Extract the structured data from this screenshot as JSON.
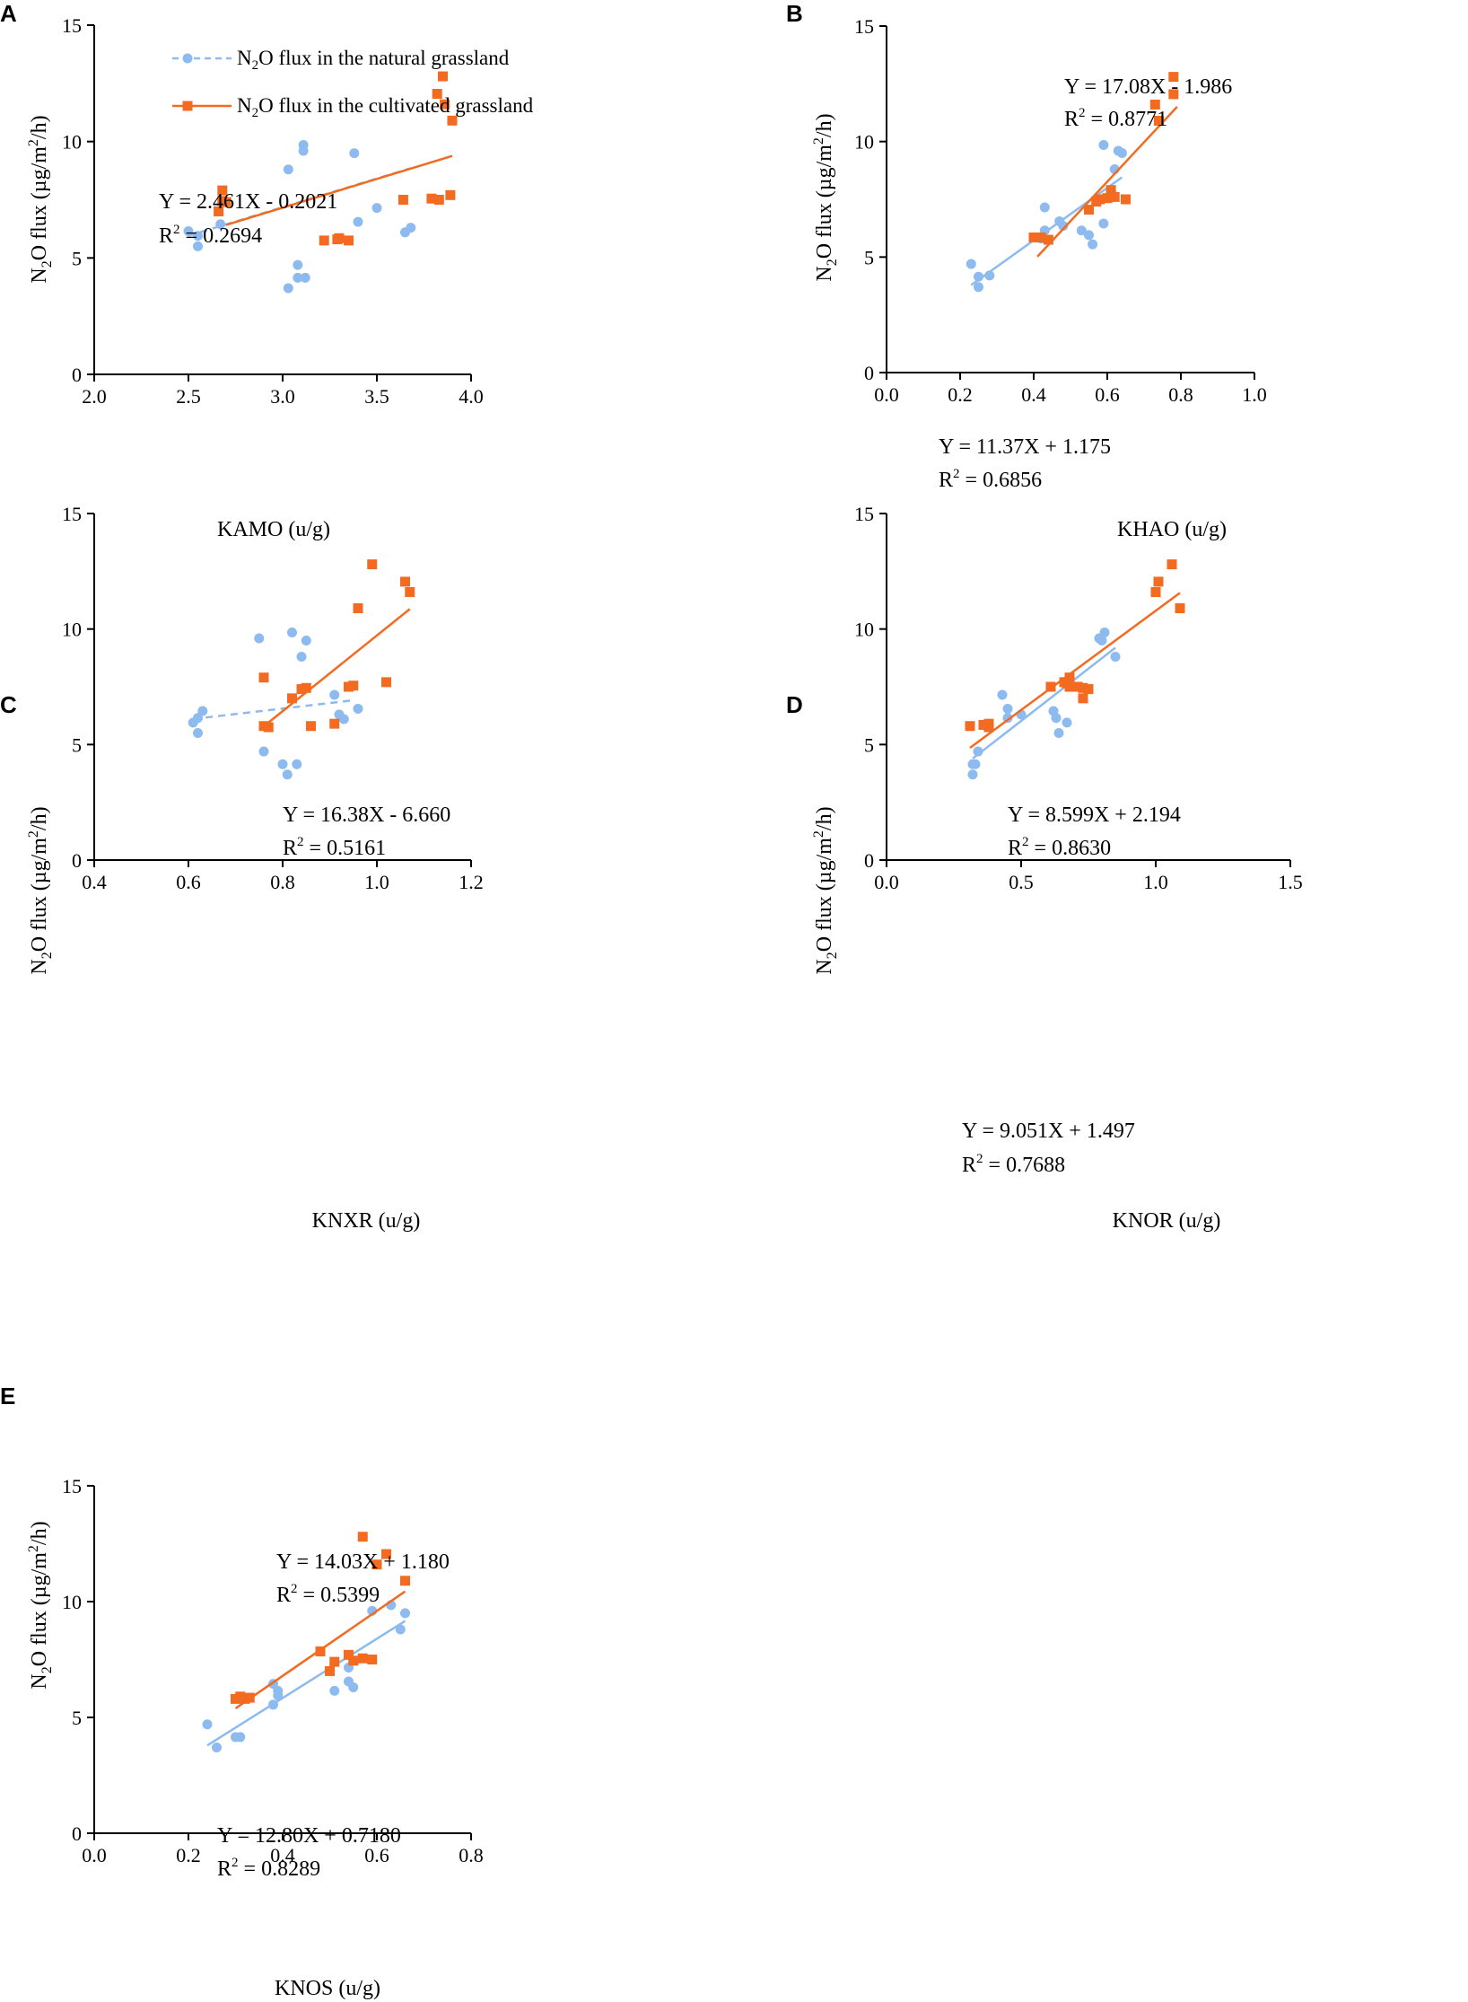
{
  "colors": {
    "natural": "#8dbbef",
    "cultivated": "#f26b21",
    "axis": "#000000"
  },
  "legend": {
    "natural": {
      "pre": "N",
      "sub": "2",
      "post": "O flux in the natural  grassland"
    },
    "cultivated": {
      "pre": "N",
      "sub": "2",
      "post": "O flux in the cultivated grassland"
    }
  },
  "chart_data": [
    {
      "panel": "A",
      "type": "scatter",
      "xlabel": "KAMO (u/g)",
      "ylabel": {
        "pre": "N",
        "sub": "2",
        "mid": "O flux (µg/m",
        "sup": "2",
        "post": "/h)"
      },
      "xlim": [
        2.0,
        4.0
      ],
      "ylim": [
        0,
        15
      ],
      "xticks": [
        2.0,
        2.5,
        3.0,
        3.5,
        4.0
      ],
      "xtick_labels": [
        "2.0",
        "2.5",
        "3.0",
        "3.5",
        "4.0"
      ],
      "yticks": [
        0,
        5,
        10,
        15
      ],
      "ytick_labels": [
        "0",
        "5",
        "10",
        "15"
      ],
      "series": [
        {
          "name": "natural",
          "points": [
            [
              2.5,
              6.15
            ],
            [
              2.55,
              5.95
            ],
            [
              2.55,
              5.5
            ],
            [
              2.67,
              6.45
            ],
            [
              3.03,
              8.8
            ],
            [
              3.03,
              3.7
            ],
            [
              3.08,
              4.7
            ],
            [
              3.08,
              4.15
            ],
            [
              3.11,
              9.85
            ],
            [
              3.11,
              9.6
            ],
            [
              3.12,
              4.15
            ],
            [
              3.38,
              9.5
            ],
            [
              3.4,
              6.55
            ],
            [
              3.5,
              7.15
            ],
            [
              3.65,
              6.1
            ],
            [
              3.68,
              6.3
            ]
          ],
          "fit": {
            "x": [
              2.5,
              3.68
            ],
            "dashed": true
          },
          "equation": "Y = 2.461X - 0.2021",
          "r2": "0.2694"
        },
        {
          "name": "cultivated",
          "points": [
            [
              2.66,
              7.0
            ],
            [
              2.68,
              7.9
            ],
            [
              2.68,
              7.45
            ],
            [
              2.7,
              7.4
            ],
            [
              3.22,
              5.75
            ],
            [
              3.29,
              5.8
            ],
            [
              3.3,
              5.85
            ],
            [
              3.35,
              5.75
            ],
            [
              3.64,
              7.5
            ],
            [
              3.79,
              7.55
            ],
            [
              3.82,
              12.05
            ],
            [
              3.83,
              7.5
            ],
            [
              3.85,
              12.8
            ],
            [
              3.86,
              11.6
            ],
            [
              3.89,
              7.7
            ],
            [
              3.9,
              10.9
            ]
          ],
          "fit": {
            "x": [
              2.7,
              3.9
            ],
            "dashed": false
          },
          "equation": "",
          "r2": ""
        }
      ]
    },
    {
      "panel": "B",
      "type": "scatter",
      "xlabel": "KHAO (u/g)",
      "ylabel": {
        "pre": "N",
        "sub": "2",
        "mid": "O flux (µg/m",
        "sup": "2",
        "post": "/h)"
      },
      "xlim": [
        0.0,
        1.0
      ],
      "ylim": [
        0,
        15
      ],
      "xticks": [
        0.0,
        0.2,
        0.4,
        0.6,
        0.8,
        1.0
      ],
      "xtick_labels": [
        "0.0",
        "0.2",
        "0.4",
        "0.6",
        "0.8",
        "1.0"
      ],
      "yticks": [
        0,
        5,
        10,
        15
      ],
      "ytick_labels": [
        "0",
        "5",
        "10",
        "15"
      ],
      "series": [
        {
          "name": "natural",
          "points": [
            [
              0.23,
              4.7
            ],
            [
              0.25,
              4.15
            ],
            [
              0.25,
              3.7
            ],
            [
              0.28,
              4.2
            ],
            [
              0.41,
              5.85
            ],
            [
              0.42,
              5.8
            ],
            [
              0.43,
              7.15
            ],
            [
              0.43,
              6.15
            ],
            [
              0.47,
              6.55
            ],
            [
              0.48,
              6.35
            ],
            [
              0.53,
              6.15
            ],
            [
              0.55,
              5.95
            ],
            [
              0.56,
              5.55
            ],
            [
              0.59,
              6.45
            ],
            [
              0.59,
              9.85
            ],
            [
              0.62,
              8.8
            ],
            [
              0.63,
              9.6
            ],
            [
              0.64,
              9.5
            ]
          ],
          "fit": {
            "x": [
              0.23,
              0.64
            ],
            "dashed": false
          },
          "equation": "Y = 11.37X + 1.175",
          "r2": "0.6856"
        },
        {
          "name": "cultivated",
          "points": [
            [
              0.4,
              5.85
            ],
            [
              0.42,
              5.85
            ],
            [
              0.44,
              5.75
            ],
            [
              0.55,
              7.05
            ],
            [
              0.57,
              7.4
            ],
            [
              0.58,
              7.5
            ],
            [
              0.6,
              7.55
            ],
            [
              0.61,
              7.9
            ],
            [
              0.61,
              7.7
            ],
            [
              0.62,
              7.6
            ],
            [
              0.65,
              7.5
            ],
            [
              0.73,
              11.6
            ],
            [
              0.74,
              10.9
            ],
            [
              0.78,
              12.05
            ],
            [
              0.78,
              12.8
            ]
          ],
          "fit": {
            "x": [
              0.41,
              0.79
            ],
            "dashed": false
          },
          "equation": "Y = 17.08X - 1.986",
          "r2": "0.8771"
        }
      ]
    },
    {
      "panel": "C",
      "type": "scatter",
      "xlabel": "KNXR (u/g)",
      "ylabel": {
        "pre": "N",
        "sub": "2",
        "mid": "O flux (µg/m",
        "sup": "2",
        "post": "/h)"
      },
      "xlim": [
        0.4,
        1.2
      ],
      "ylim": [
        0,
        15
      ],
      "xticks": [
        0.4,
        0.6,
        0.8,
        1.0,
        1.2
      ],
      "xtick_labels": [
        "0.4",
        "0.6",
        "0.8",
        "1.0",
        "1.2"
      ],
      "yticks": [
        0,
        5,
        10,
        15
      ],
      "ytick_labels": [
        "0",
        "5",
        "10",
        "15"
      ],
      "series": [
        {
          "name": "natural",
          "points": [
            [
              0.61,
              5.95
            ],
            [
              0.62,
              6.15
            ],
            [
              0.62,
              5.5
            ],
            [
              0.63,
              6.45
            ],
            [
              0.75,
              9.6
            ],
            [
              0.76,
              4.7
            ],
            [
              0.8,
              4.15
            ],
            [
              0.81,
              3.7
            ],
            [
              0.82,
              9.85
            ],
            [
              0.83,
              4.15
            ],
            [
              0.84,
              8.8
            ],
            [
              0.85,
              9.5
            ],
            [
              0.91,
              7.15
            ],
            [
              0.92,
              6.3
            ],
            [
              0.93,
              6.1
            ],
            [
              0.96,
              6.55
            ]
          ],
          "fit": {
            "x": [
              0.61,
              0.95
            ],
            "dashed": true
          },
          "equation": "",
          "r2": ""
        },
        {
          "name": "cultivated",
          "points": [
            [
              0.76,
              7.9
            ],
            [
              0.76,
              5.8
            ],
            [
              0.77,
              5.75
            ],
            [
              0.82,
              7.0
            ],
            [
              0.84,
              7.4
            ],
            [
              0.85,
              7.45
            ],
            [
              0.86,
              5.8
            ],
            [
              0.91,
              5.9
            ],
            [
              0.94,
              7.5
            ],
            [
              0.95,
              7.55
            ],
            [
              0.96,
              10.9
            ],
            [
              0.99,
              12.8
            ],
            [
              1.02,
              7.7
            ],
            [
              1.06,
              12.05
            ],
            [
              1.07,
              11.6
            ]
          ],
          "fit": {
            "x": [
              0.76,
              1.07
            ],
            "dashed": false
          },
          "equation": "Y = 16.38X - 6.660",
          "r2": "0.5161"
        }
      ]
    },
    {
      "panel": "D",
      "type": "scatter",
      "xlabel": "KNOR (u/g)",
      "ylabel": {
        "pre": "N",
        "sub": "2",
        "mid": "O flux (µg/m",
        "sup": "2",
        "post": "/h)"
      },
      "xlim": [
        0.0,
        1.5
      ],
      "ylim": [
        0,
        15
      ],
      "xticks": [
        0.0,
        0.5,
        1.0,
        1.5
      ],
      "xtick_labels": [
        "0.0",
        "0.5",
        "1.0",
        "1.5"
      ],
      "yticks": [
        0,
        5,
        10,
        15
      ],
      "ytick_labels": [
        "0",
        "5",
        "10",
        "15"
      ],
      "series": [
        {
          "name": "natural",
          "points": [
            [
              0.32,
              4.15
            ],
            [
              0.32,
              3.7
            ],
            [
              0.33,
              4.15
            ],
            [
              0.34,
              4.7
            ],
            [
              0.43,
              7.15
            ],
            [
              0.45,
              6.55
            ],
            [
              0.45,
              6.15
            ],
            [
              0.5,
              6.3
            ],
            [
              0.62,
              6.45
            ],
            [
              0.63,
              6.15
            ],
            [
              0.64,
              5.5
            ],
            [
              0.67,
              5.95
            ],
            [
              0.79,
              9.6
            ],
            [
              0.8,
              9.5
            ],
            [
              0.81,
              9.85
            ],
            [
              0.85,
              8.8
            ]
          ],
          "fit": {
            "x": [
              0.32,
              0.85
            ],
            "dashed": false
          },
          "equation": "Y = 9.051X + 1.497",
          "r2": "0.7688"
        },
        {
          "name": "cultivated",
          "points": [
            [
              0.31,
              5.8
            ],
            [
              0.36,
              5.85
            ],
            [
              0.38,
              5.9
            ],
            [
              0.38,
              5.75
            ],
            [
              0.61,
              7.5
            ],
            [
              0.66,
              7.7
            ],
            [
              0.67,
              7.65
            ],
            [
              0.68,
              7.9
            ],
            [
              0.68,
              7.5
            ],
            [
              0.71,
              7.5
            ],
            [
              0.73,
              7.0
            ],
            [
              0.73,
              7.45
            ],
            [
              0.75,
              7.4
            ],
            [
              1.0,
              11.6
            ],
            [
              1.01,
              12.05
            ],
            [
              1.06,
              12.8
            ],
            [
              1.09,
              10.9
            ]
          ],
          "fit": {
            "x": [
              0.31,
              1.09
            ],
            "dashed": false
          },
          "equation": "Y = 8.599X + 2.194",
          "r2": "0.8630"
        }
      ]
    },
    {
      "panel": "E",
      "type": "scatter",
      "xlabel": "KNOS (u/g)",
      "ylabel": {
        "pre": "N",
        "sub": "2",
        "mid": "O flux (µg/m",
        "sup": "2",
        "post": "/h)"
      },
      "xlim": [
        0.0,
        0.8
      ],
      "ylim": [
        0,
        15
      ],
      "xticks": [
        0.0,
        0.2,
        0.4,
        0.6,
        0.8
      ],
      "xtick_labels": [
        "0.0",
        "0.2",
        "0.4",
        "0.6",
        "0.8"
      ],
      "yticks": [
        0,
        5,
        10,
        15
      ],
      "ytick_labels": [
        "0",
        "5",
        "10",
        "15"
      ],
      "series": [
        {
          "name": "natural",
          "points": [
            [
              0.24,
              4.7
            ],
            [
              0.26,
              3.7
            ],
            [
              0.3,
              4.15
            ],
            [
              0.31,
              4.15
            ],
            [
              0.38,
              6.45
            ],
            [
              0.38,
              5.55
            ],
            [
              0.39,
              6.15
            ],
            [
              0.39,
              5.95
            ],
            [
              0.51,
              6.15
            ],
            [
              0.54,
              7.15
            ],
            [
              0.54,
              6.55
            ],
            [
              0.55,
              6.3
            ],
            [
              0.59,
              9.6
            ],
            [
              0.63,
              9.85
            ],
            [
              0.65,
              8.8
            ],
            [
              0.66,
              9.5
            ]
          ],
          "fit": {
            "x": [
              0.24,
              0.66
            ],
            "dashed": false
          },
          "equation": "Y = 12.80X + 0.7180",
          "r2": "0.8289"
        },
        {
          "name": "cultivated",
          "points": [
            [
              0.3,
              5.8
            ],
            [
              0.31,
              5.9
            ],
            [
              0.32,
              5.8
            ],
            [
              0.33,
              5.85
            ],
            [
              0.48,
              7.85
            ],
            [
              0.5,
              7.0
            ],
            [
              0.51,
              7.4
            ],
            [
              0.54,
              7.7
            ],
            [
              0.55,
              7.45
            ],
            [
              0.57,
              7.55
            ],
            [
              0.57,
              12.8
            ],
            [
              0.59,
              7.5
            ],
            [
              0.6,
              11.6
            ],
            [
              0.62,
              12.05
            ],
            [
              0.66,
              10.9
            ]
          ],
          "fit": {
            "x": [
              0.3,
              0.66
            ],
            "dashed": false
          },
          "equation": "Y = 14.03X + 1.180",
          "r2": "0.5399"
        }
      ]
    }
  ]
}
